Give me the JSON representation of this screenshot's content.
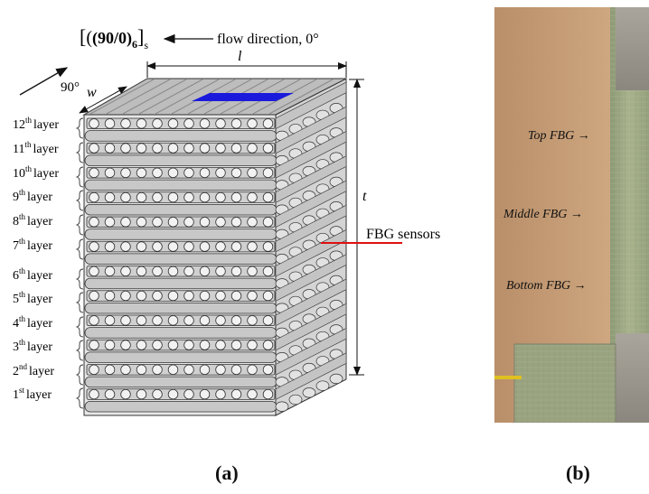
{
  "panel_a": {
    "layup_notation": {
      "main": "(90/0)",
      "sub6": "6",
      "subs": "s"
    },
    "flow_label": "flow direction, 0°",
    "angle_label": "90°",
    "width_label": "w",
    "length_label": "l",
    "thickness_label": "t",
    "sensor_label": "FBG sensors",
    "layers": [
      {
        "num": "12",
        "suf": "th",
        "word": "layer"
      },
      {
        "num": "11",
        "suf": "th",
        "word": "layer"
      },
      {
        "num": "10",
        "suf": "th",
        "word": "layer"
      },
      {
        "num": "9",
        "suf": "th",
        "word": "layer"
      },
      {
        "num": "8",
        "suf": "th",
        "word": "layer"
      },
      {
        "num": "7",
        "suf": "th",
        "word": "layer"
      },
      {
        "num": "6",
        "suf": "th",
        "word": "layer"
      },
      {
        "num": "5",
        "suf": "th",
        "word": "layer"
      },
      {
        "num": "4",
        "suf": "th",
        "word": "layer"
      },
      {
        "num": "3",
        "suf": "th",
        "word": "layer"
      },
      {
        "num": "2",
        "suf": "nd",
        "word": "layer"
      },
      {
        "num": "1",
        "suf": "st",
        "word": "layer"
      }
    ],
    "caption": "(a)"
  },
  "panel_b": {
    "top": "Top FBG →",
    "middle": "Middle FBG →",
    "bottom": "Bottom FBG →",
    "caption": "(b)"
  },
  "colors": {
    "fiber": "#c8c8c8",
    "outline": "#333333",
    "sensor_top": "#1a1adc",
    "sensor_line": "#e01010"
  }
}
